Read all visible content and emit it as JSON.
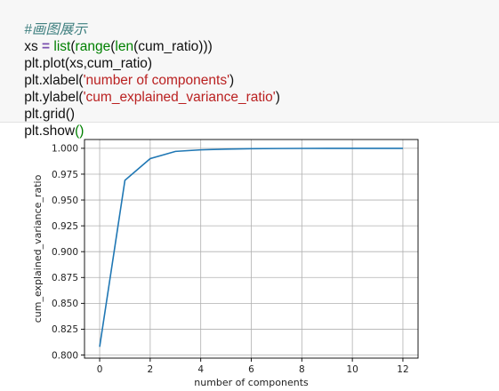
{
  "code": {
    "line1_comment": "#画图展示",
    "line2": [
      "xs ",
      "=",
      " ",
      "list",
      "(",
      "range",
      "(",
      "len",
      "(cum_ratio)))"
    ],
    "line3": "plt.plot(xs,cum_ratio)",
    "line4": [
      "plt.xlabel(",
      "'number of components'",
      ")"
    ],
    "line5": [
      "plt.ylabel(",
      "'cum_explained_variance_ratio'",
      ")"
    ],
    "line6": "plt.grid()",
    "line7": [
      "plt.show",
      "()"
    ]
  },
  "chart_data": {
    "type": "line",
    "x": [
      0,
      1,
      2,
      3,
      4,
      5,
      6,
      7,
      8,
      9,
      10,
      11,
      12
    ],
    "series": [
      {
        "values": [
          0.808,
          0.969,
          0.99,
          0.997,
          0.9985,
          0.9992,
          0.9996,
          0.9998,
          0.9999,
          0.99995,
          1.0,
          1.0,
          1.0
        ]
      }
    ],
    "xlabel": "number of components",
    "ylabel": "cum_explained_variance_ratio",
    "xlim": [
      -0.6,
      12.6
    ],
    "ylim": [
      0.797,
      1.0085
    ],
    "xticks": [
      0,
      2,
      4,
      6,
      8,
      10,
      12
    ],
    "xtick_labels": [
      "0",
      "2",
      "4",
      "6",
      "8",
      "10",
      "12"
    ],
    "yticks": [
      0.8,
      0.825,
      0.85,
      0.875,
      0.9,
      0.925,
      0.95,
      0.975,
      1.0
    ],
    "ytick_labels": [
      "0.800",
      "0.825",
      "0.850",
      "0.875",
      "0.900",
      "0.925",
      "0.950",
      "0.975",
      "1.000"
    ],
    "grid": true,
    "line_color": "#1f77b4",
    "grid_color": "#b0b0b0"
  }
}
